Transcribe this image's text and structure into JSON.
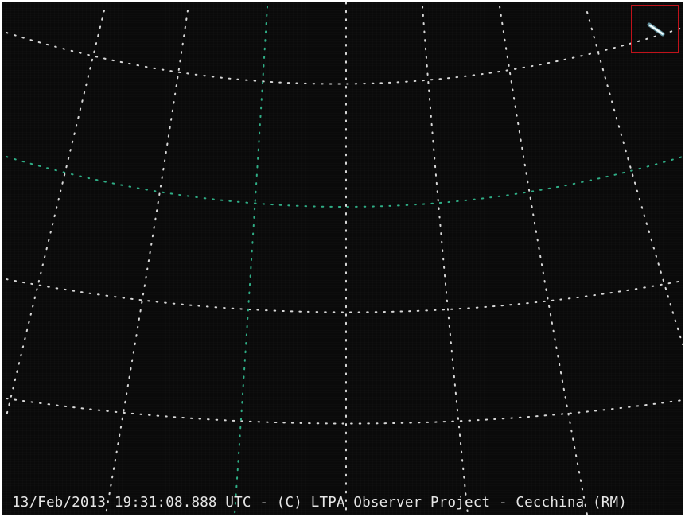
{
  "caption": {
    "text": "13/Feb/2013 19:31:08.888 UTC - (C) LTPA Observer Project - Cecchina (RM)"
  },
  "colors": {
    "background": "#0a0a0a",
    "grid_white": "#d8d8d8",
    "grid_green": "#2fae86",
    "detection_box": "#c0121a",
    "meteor": "#dffcff"
  },
  "overlays": {
    "detection_box": "red rectangle marking the meteor trail",
    "meteor": "bright short streak in the upper-right corner"
  }
}
